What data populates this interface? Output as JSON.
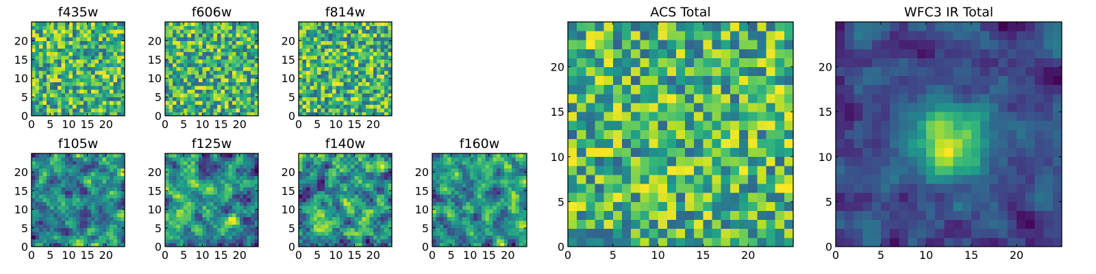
{
  "chart_data": [
    {
      "type": "heatmap",
      "title": "f435w",
      "xticks": [
        0,
        5,
        10,
        15,
        20
      ],
      "yticks": [
        0,
        5,
        10,
        15,
        20
      ],
      "xlim": [
        0,
        25
      ],
      "ylim": [
        0,
        25
      ],
      "grid": 25,
      "colormap": "viridis",
      "pattern": "noise",
      "smooth": 1,
      "seed": 11
    },
    {
      "type": "heatmap",
      "title": "f606w",
      "xticks": [
        0,
        5,
        10,
        15,
        20
      ],
      "yticks": [
        0,
        5,
        10,
        15,
        20
      ],
      "xlim": [
        0,
        25
      ],
      "ylim": [
        0,
        25
      ],
      "grid": 25,
      "colormap": "viridis",
      "pattern": "noise",
      "smooth": 1,
      "seed": 23
    },
    {
      "type": "heatmap",
      "title": "f814w",
      "xticks": [
        0,
        5,
        10,
        15,
        20
      ],
      "yticks": [
        0,
        5,
        10,
        15,
        20
      ],
      "xlim": [
        0,
        25
      ],
      "ylim": [
        0,
        25
      ],
      "grid": 25,
      "colormap": "viridis",
      "pattern": "noise",
      "smooth": 1,
      "seed": 37
    },
    {
      "type": "heatmap",
      "title": "f105w",
      "xticks": [
        0,
        5,
        10,
        15,
        20
      ],
      "yticks": [
        0,
        5,
        10,
        15,
        20
      ],
      "xlim": [
        0,
        25
      ],
      "ylim": [
        0,
        25
      ],
      "grid": 25,
      "colormap": "viridis",
      "pattern": "smooth-noise",
      "smooth": 2,
      "seed": 41
    },
    {
      "type": "heatmap",
      "title": "f125w",
      "xticks": [
        0,
        5,
        10,
        15,
        20
      ],
      "yticks": [
        0,
        5,
        10,
        15,
        20
      ],
      "xlim": [
        0,
        25
      ],
      "ylim": [
        0,
        25
      ],
      "grid": 25,
      "colormap": "viridis",
      "pattern": "smooth-noise",
      "smooth": 2,
      "seed": 53
    },
    {
      "type": "heatmap",
      "title": "f140w",
      "xticks": [
        0,
        5,
        10,
        15,
        20
      ],
      "yticks": [
        0,
        5,
        10,
        15,
        20
      ],
      "xlim": [
        0,
        25
      ],
      "ylim": [
        0,
        25
      ],
      "grid": 25,
      "colormap": "viridis",
      "pattern": "smooth-noise",
      "smooth": 2,
      "seed": 67
    },
    {
      "type": "heatmap",
      "title": "f160w",
      "xticks": [
        0,
        5,
        10,
        15,
        20
      ],
      "yticks": [
        0,
        5,
        10,
        15,
        20
      ],
      "xlim": [
        0,
        25
      ],
      "ylim": [
        0,
        25
      ],
      "grid": 25,
      "colormap": "viridis",
      "pattern": "smooth-noise",
      "smooth": 2,
      "seed": 79
    },
    {
      "type": "heatmap",
      "title": "ACS Total",
      "xticks": [
        0,
        5,
        10,
        15,
        20
      ],
      "yticks": [
        0,
        5,
        10,
        15,
        20
      ],
      "xlim": [
        0,
        25
      ],
      "ylim": [
        0,
        25
      ],
      "grid": 25,
      "colormap": "viridis",
      "pattern": "noise",
      "smooth": 1,
      "seed": 97
    },
    {
      "type": "heatmap",
      "title": "WFC3 IR Total",
      "xticks": [
        0,
        5,
        10,
        15,
        20
      ],
      "yticks": [
        0,
        5,
        10,
        15,
        20
      ],
      "xlim": [
        0,
        25
      ],
      "ylim": [
        0,
        25
      ],
      "grid": 25,
      "colormap": "viridis",
      "pattern": "blob",
      "smooth": 2,
      "seed": 113
    }
  ]
}
